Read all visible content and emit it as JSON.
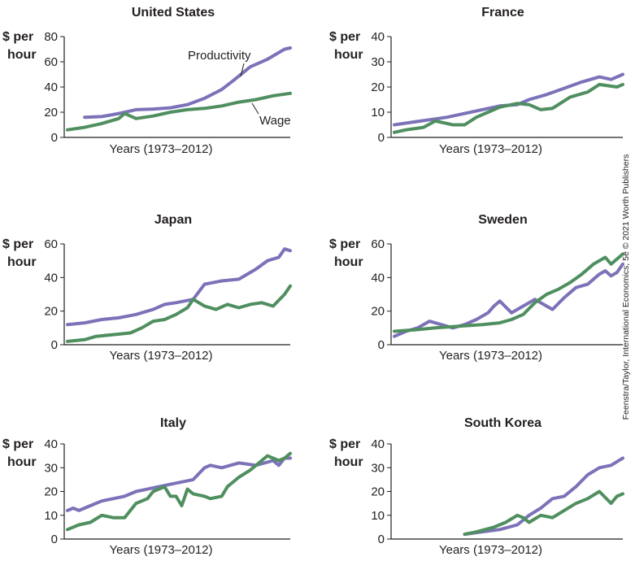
{
  "credit": "Feenstra/Taylor, International Economics, 5e © 2021 Worth Publishers",
  "colors": {
    "productivity": "#7b72b8",
    "wage": "#4f8f5f",
    "axis": "#231f20",
    "text": "#231f20"
  },
  "chart_data": [
    {
      "type": "line",
      "title": "United States",
      "ylabel": "$ per hour",
      "xlabel": "Years (1973–2012)",
      "ylim": [
        0,
        80
      ],
      "yticks": [
        0,
        20,
        40,
        60,
        80
      ],
      "xlim": [
        1973,
        2012
      ],
      "annotations": [
        "Productivity",
        "Wage"
      ],
      "series": [
        {
          "name": "Productivity",
          "color": "#7b72b8",
          "x": [
            1976,
            1979,
            1982,
            1985,
            1988,
            1991,
            1994,
            1997,
            2000,
            2002,
            2005,
            2008,
            2011,
            2012
          ],
          "y": [
            16,
            16.5,
            19,
            22,
            22.5,
            23.5,
            26,
            31,
            38,
            45,
            56,
            62,
            70,
            71
          ]
        },
        {
          "name": "Wage",
          "color": "#4f8f5f",
          "x": [
            1973,
            1976,
            1979,
            1982,
            1983,
            1985,
            1988,
            1991,
            1994,
            1997,
            2000,
            2003,
            2006,
            2009,
            2012
          ],
          "y": [
            6,
            8,
            11,
            15,
            19,
            15,
            17,
            20,
            22,
            23,
            25,
            28,
            30,
            33,
            35
          ]
        }
      ]
    },
    {
      "type": "line",
      "title": "France",
      "ylabel": "$ per hour",
      "xlabel": "Years (1973–2012)",
      "ylim": [
        0,
        80
      ],
      "yticks": [
        0,
        10,
        20,
        30,
        40
      ],
      "xlim": [
        1973,
        2012
      ],
      "series": [
        {
          "name": "Productivity",
          "color": "#7b72b8",
          "x": [
            1973,
            1976,
            1979,
            1982,
            1985,
            1988,
            1991,
            1994,
            1996,
            1999,
            2002,
            2005,
            2008,
            2010,
            2012
          ],
          "y": [
            5,
            6,
            7,
            8,
            9.5,
            11,
            12.5,
            13,
            15,
            17,
            19.5,
            22,
            24,
            23,
            25
          ]
        },
        {
          "name": "Wage",
          "color": "#4f8f5f",
          "x": [
            1973,
            1975,
            1978,
            1980,
            1983,
            1985,
            1987,
            1989,
            1991,
            1994,
            1996,
            1998,
            2000,
            2003,
            2006,
            2008,
            2011,
            2012
          ],
          "y": [
            2,
            3,
            4,
            6.5,
            5,
            5,
            8,
            10,
            12,
            13.5,
            13,
            11,
            11.5,
            16,
            18,
            21,
            20,
            21
          ]
        }
      ]
    },
    {
      "type": "line",
      "title": "Japan",
      "ylabel": "$ per hour",
      "xlabel": "Years (1973–2012)",
      "ylim": [
        0,
        60
      ],
      "yticks": [
        0,
        20,
        40,
        60
      ],
      "xlim": [
        1973,
        2012
      ],
      "series": [
        {
          "name": "Productivity",
          "color": "#7b72b8",
          "x": [
            1973,
            1976,
            1979,
            1982,
            1985,
            1988,
            1990,
            1992,
            1995,
            1997,
            2000,
            2003,
            2006,
            2008,
            2010,
            2011,
            2012
          ],
          "y": [
            12,
            13,
            15,
            16,
            18,
            21,
            24,
            25,
            27,
            36,
            38,
            39,
            45,
            50,
            52,
            57,
            56
          ]
        },
        {
          "name": "Wage",
          "color": "#4f8f5f",
          "x": [
            1973,
            1976,
            1978,
            1981,
            1984,
            1986,
            1988,
            1990,
            1992,
            1994,
            1995,
            1997,
            1999,
            2001,
            2003,
            2005,
            2007,
            2009,
            2011,
            2012
          ],
          "y": [
            2,
            3,
            5,
            6,
            7,
            10,
            14,
            15,
            18,
            22,
            27,
            23,
            21,
            24,
            22,
            24,
            25,
            23,
            30,
            35
          ]
        }
      ]
    },
    {
      "type": "line",
      "title": "Sweden",
      "ylabel": "$ per hour",
      "xlabel": "Years (1973–2012)",
      "ylim": [
        0,
        60
      ],
      "yticks": [
        0,
        20,
        40,
        60
      ],
      "xlim": [
        1973,
        2012
      ],
      "series": [
        {
          "name": "Productivity",
          "color": "#7b72b8",
          "x": [
            1973,
            1975,
            1977,
            1979,
            1981,
            1983,
            1985,
            1987,
            1989,
            1990,
            1991,
            1993,
            1995,
            1997,
            1999,
            2000,
            2002,
            2004,
            2006,
            2008,
            2009,
            2010,
            2011,
            2012
          ],
          "y": [
            5,
            8,
            10,
            14,
            12,
            10,
            12,
            15,
            19,
            23,
            26,
            19,
            23,
            27,
            23,
            21,
            28,
            34,
            36,
            42,
            44,
            41,
            43,
            48
          ]
        },
        {
          "name": "Wage",
          "color": "#4f8f5f",
          "x": [
            1973,
            1977,
            1980,
            1984,
            1988,
            1991,
            1993,
            1995,
            1997,
            1999,
            2001,
            2003,
            2005,
            2007,
            2009,
            2010,
            2011,
            2012
          ],
          "y": [
            8,
            9,
            10,
            11,
            12,
            13,
            15,
            18,
            25,
            30,
            33,
            37,
            42,
            48,
            52,
            48,
            51,
            54
          ]
        }
      ]
    },
    {
      "type": "line",
      "title": "Italy",
      "ylabel": "$ per hour",
      "xlabel": "Years (1973–2012)",
      "ylim": [
        0,
        40
      ],
      "yticks": [
        0,
        10,
        20,
        30,
        40
      ],
      "xlim": [
        1973,
        2012
      ],
      "series": [
        {
          "name": "Productivity",
          "color": "#7b72b8",
          "x": [
            1973,
            1974,
            1975,
            1977,
            1979,
            1981,
            1983,
            1985,
            1987,
            1989,
            1991,
            1993,
            1995,
            1997,
            1998,
            2000,
            2003,
            2006,
            2009,
            2010,
            2011,
            2012
          ],
          "y": [
            12,
            13,
            12,
            14,
            16,
            17,
            18,
            20,
            21,
            22,
            23,
            24,
            25,
            30,
            31,
            30,
            32,
            31,
            33,
            31,
            34,
            34
          ]
        },
        {
          "name": "Wage",
          "color": "#4f8f5f",
          "x": [
            1973,
            1975,
            1977,
            1979,
            1981,
            1983,
            1985,
            1987,
            1988,
            1990,
            1991,
            1992,
            1993,
            1994,
            1995,
            1997,
            1998,
            2000,
            2001,
            2003,
            2005,
            2007,
            2008,
            2010,
            2011,
            2012
          ],
          "y": [
            4,
            6,
            7,
            10,
            9,
            9,
            15,
            17,
            20,
            22,
            18,
            18,
            14,
            21,
            19,
            18,
            17,
            18,
            22,
            26,
            29,
            33,
            35,
            33,
            34,
            36
          ]
        }
      ]
    },
    {
      "type": "line",
      "title": "South Korea",
      "ylabel": "$ per hour",
      "xlabel": "Years (1973–2012)",
      "ylim": [
        0,
        40
      ],
      "yticks": [
        0,
        10,
        20,
        30,
        40
      ],
      "xlim": [
        1973,
        2012
      ],
      "series": [
        {
          "name": "Productivity",
          "color": "#7b72b8",
          "x": [
            1985,
            1988,
            1991,
            1994,
            1996,
            1998,
            2000,
            2002,
            2004,
            2006,
            2008,
            2010,
            2012
          ],
          "y": [
            2,
            3,
            4,
            6,
            10,
            13,
            17,
            18,
            22,
            27,
            30,
            31,
            34
          ]
        },
        {
          "name": "Wage",
          "color": "#4f8f5f",
          "x": [
            1985,
            1987,
            1990,
            1992,
            1994,
            1995,
            1996,
            1998,
            2000,
            2002,
            2004,
            2006,
            2008,
            2010,
            2011,
            2012
          ],
          "y": [
            2,
            3,
            5,
            7,
            10,
            9,
            7,
            10,
            9,
            12,
            15,
            17,
            20,
            15,
            18,
            19
          ]
        }
      ]
    }
  ]
}
